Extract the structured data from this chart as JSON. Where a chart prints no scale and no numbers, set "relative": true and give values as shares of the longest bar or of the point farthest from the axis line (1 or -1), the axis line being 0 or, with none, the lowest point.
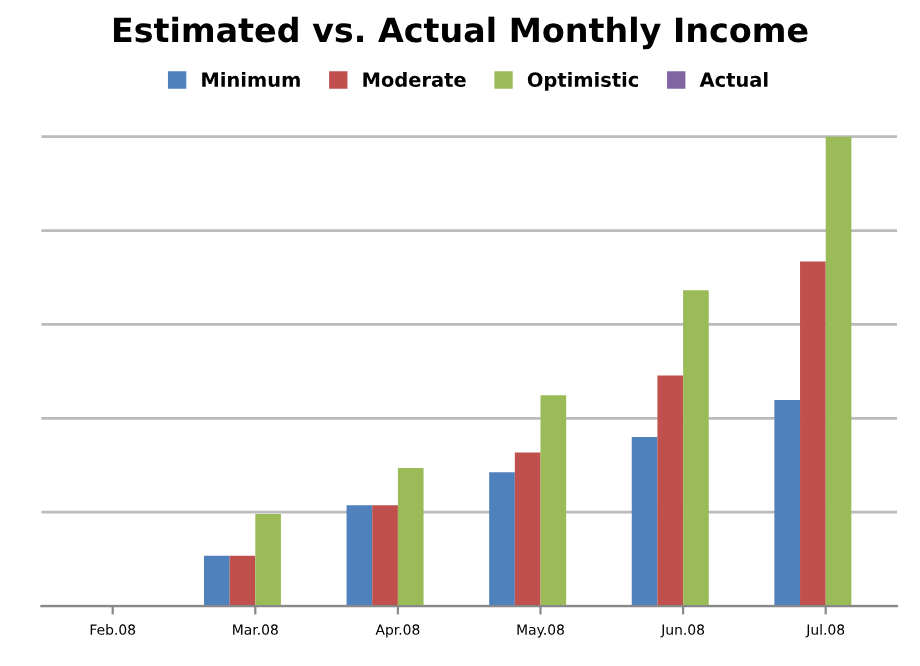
{
  "chart_data": {
    "type": "bar",
    "title": "Estimated vs. Actual Monthly Income",
    "relative": true,
    "grid": "y",
    "legend": "top",
    "categories": [
      "Feb.08",
      "Mar.08",
      "Apr.08",
      "May.08",
      "Jun.08",
      "Jul.08"
    ],
    "series": [
      {
        "name": "Minimum",
        "color": "#4f81bd",
        "values": [
          null,
          0.107,
          0.215,
          0.285,
          0.36,
          0.439
        ]
      },
      {
        "name": "Moderate",
        "color": "#c0504d",
        "values": [
          null,
          0.107,
          0.215,
          0.327,
          0.491,
          0.734
        ]
      },
      {
        "name": "Optimistic",
        "color": "#9bbb59",
        "values": [
          null,
          0.196,
          0.294,
          0.449,
          0.673,
          1.0
        ]
      },
      {
        "name": "Actual",
        "color": "#8064a2",
        "values": [
          null,
          null,
          null,
          null,
          null,
          null
        ]
      }
    ]
  }
}
